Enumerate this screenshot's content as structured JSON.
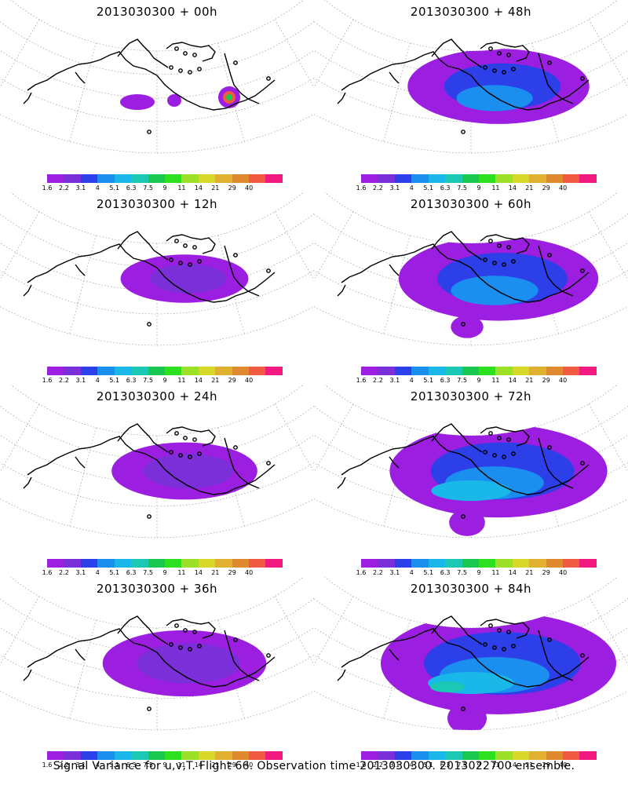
{
  "panels": [
    {
      "title": "2013030300 + 00h",
      "lead": 0
    },
    {
      "title": "2013030300 + 48h",
      "lead": 48
    },
    {
      "title": "2013030300 + 12h",
      "lead": 12
    },
    {
      "title": "2013030300 + 60h",
      "lead": 60
    },
    {
      "title": "2013030300 + 24h",
      "lead": 24
    },
    {
      "title": "2013030300 + 72h",
      "lead": 72
    },
    {
      "title": "2013030300 + 36h",
      "lead": 36
    },
    {
      "title": "2013030300 + 84h",
      "lead": 84
    }
  ],
  "colorbar": {
    "labels": [
      "1.6",
      "2.2",
      "3.1",
      "4",
      "5.1",
      "6.3",
      "7.5",
      "9",
      "11",
      "14",
      "21",
      "29",
      "40"
    ],
    "colors": [
      "#9c1ee0",
      "#7a2fd8",
      "#2d3fe8",
      "#1a8ff0",
      "#1ab8e8",
      "#1ac8b4",
      "#18c850",
      "#2ee020",
      "#9ce028",
      "#d8d828",
      "#e0b030",
      "#e08a30",
      "#f05a40",
      "#f01a80"
    ]
  },
  "footer": "Signal Variance for u,v,T. Flight 66. Observation time 2013030300. 2013022700 ensemble."
}
